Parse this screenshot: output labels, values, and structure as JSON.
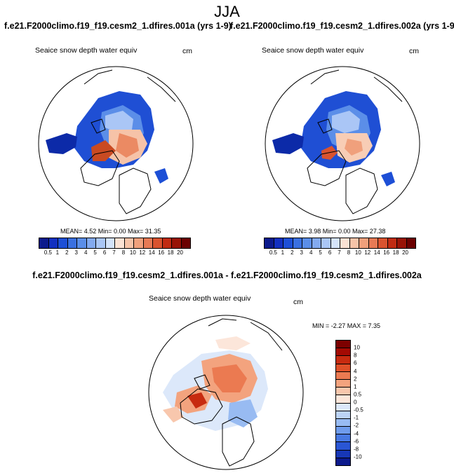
{
  "title": "JJA",
  "case1_title": "f.e21.F2000climo.f19_f19.cesm2_1.dfires.001a (yrs 1-9)",
  "case2_title": "f.e21.F2000climo.f19_f19.cesm2_1.dfires.002a (yrs 1-9)",
  "diff_title": "f.e21.F2000climo.f19_f19.cesm2_1.dfires.001a - f.e21.F2000climo.f19_f19.cesm2_1.dfires.002a",
  "variable_label": "Seaice snow depth water equiv",
  "units": "cm",
  "panel1_stats": "MEAN=   4.52  Min=   0.00  Max=  31.35",
  "panel2_stats": "MEAN=   3.98  Min=   0.00  Max=  27.38",
  "diff_stats": "MIN =  -2.27 MAX =   7.35",
  "colorbar_abs": {
    "labels": [
      "0.5",
      "1",
      "2",
      "3",
      "4",
      "5",
      "6",
      "7",
      "8",
      "10",
      "12",
      "14",
      "16",
      "18",
      "20"
    ],
    "colors": [
      "#0c1a8c",
      "#1230c0",
      "#1d4fd6",
      "#3a70e0",
      "#5b8ee8",
      "#83aaf0",
      "#aac6f6",
      "#d4e3fa",
      "#fbe2d4",
      "#f6c3a8",
      "#f0a07c",
      "#e77a55",
      "#d9532f",
      "#c02b12",
      "#981306",
      "#6b0000"
    ]
  },
  "colorbar_diff": {
    "labels": [
      "10",
      "8",
      "6",
      "4",
      "2",
      "1",
      "0.5",
      "0",
      "-0.5",
      "-1",
      "-2",
      "-4",
      "-6",
      "-8",
      "-10"
    ],
    "colors": [
      "#7d0000",
      "#a40a03",
      "#c72b10",
      "#df5129",
      "#eb7a51",
      "#f3a37e",
      "#f8c7ad",
      "#fce6da",
      "#dce8fa",
      "#bcd3f6",
      "#98bbf2",
      "#6f9cec",
      "#4879e2",
      "#2a56d4",
      "#1737b6",
      "#0c1a8c"
    ]
  }
}
